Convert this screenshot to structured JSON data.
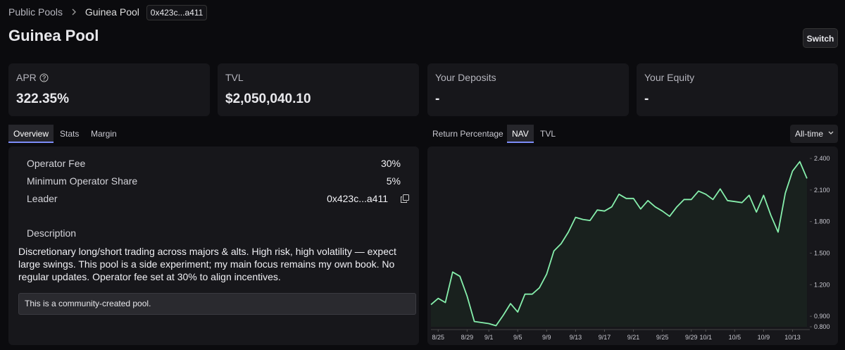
{
  "breadcrumb": [
    "Public Pools",
    "Guinea Pool",
    "0x423c...a411"
  ],
  "title": "Guinea Pool",
  "switch_button": "Switch",
  "stats": [
    {
      "label": "APR",
      "value": "322.35%"
    },
    {
      "label": "TVL",
      "value": "$2,050,040.10"
    },
    {
      "label": "Your Deposits",
      "value": "-"
    },
    {
      "label": "Your Equity",
      "value": "-"
    }
  ],
  "left_tabs": {
    "items": [
      "Overview",
      "Stats",
      "Margin"
    ],
    "active": 0
  },
  "details": [
    {
      "label": "Operator Fee",
      "value": "30%"
    },
    {
      "label": "Minimum Operator Share",
      "value": "5%"
    },
    {
      "label": "Leader",
      "value": "0x423c...a411"
    }
  ],
  "description": {
    "heading": "Description",
    "text": "Discretionary long/short trading across majors & alts. High risk, high volatility — expect large swings. This pool is a side experiment; my main focus remains my own book. No regular updates. Operator fee set at 30% to align incentives.",
    "note": "This is a community-created pool."
  },
  "chart_tabs": {
    "items": [
      "Return Percentage",
      "NAV",
      "TVL"
    ],
    "active": 1
  },
  "range_selector": "All-time",
  "chart_data": {
    "type": "area",
    "categories": [
      null,
      "8/25",
      null,
      null,
      null,
      "8/29",
      null,
      null,
      "9/1",
      null,
      null,
      null,
      "9/5",
      null,
      null,
      null,
      "9/9",
      null,
      null,
      null,
      "9/13",
      null,
      null,
      null,
      "9/17",
      null,
      null,
      null,
      "9/21",
      null,
      null,
      null,
      "9/25",
      null,
      null,
      null,
      "9/29",
      null,
      "10/1",
      null,
      null,
      null,
      "10/5",
      null,
      null,
      null,
      "10/9",
      null,
      null,
      null,
      "10/13",
      null,
      null
    ],
    "values": [
      1.01,
      1.07,
      1.03,
      1.32,
      1.28,
      1.09,
      0.85,
      0.84,
      0.83,
      0.81,
      0.91,
      1.02,
      0.94,
      1.11,
      1.11,
      1.17,
      1.3,
      1.52,
      1.59,
      1.7,
      1.84,
      1.82,
      1.81,
      1.91,
      1.9,
      1.94,
      2.06,
      2.02,
      2.02,
      1.92,
      2.0,
      1.94,
      1.9,
      1.85,
      1.94,
      2.01,
      2.01,
      2.09,
      2.06,
      2.01,
      2.11,
      2.0,
      1.99,
      1.98,
      2.05,
      1.89,
      2.05,
      1.86,
      1.7,
      2.07,
      2.28,
      2.37,
      2.21
    ],
    "color": "#86efac",
    "area_color": "#19211e",
    "ylim": [
      0.8,
      2.4
    ],
    "yticks": [
      {
        "value": 0.8,
        "label": "0.800"
      },
      {
        "value": 0.9,
        "label": "0.900"
      },
      {
        "value": 1.2,
        "label": "1.200"
      },
      {
        "value": 1.5,
        "label": "1.500"
      },
      {
        "value": 1.8,
        "label": "1.800"
      },
      {
        "value": 2.1,
        "label": "2.100"
      },
      {
        "value": 2.4,
        "label": "2.400"
      }
    ]
  }
}
